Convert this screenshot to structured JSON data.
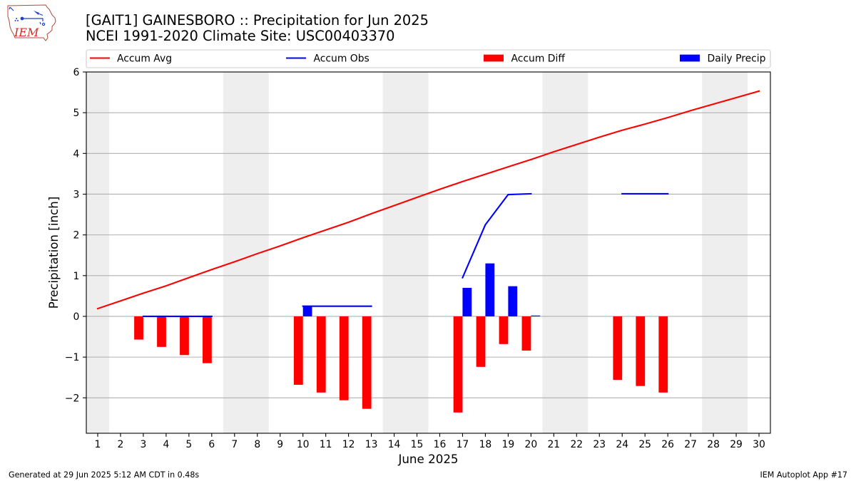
{
  "logo": {
    "text": "IEM"
  },
  "chart_data": {
    "type": "bar",
    "title": "[GAIT1] GAINESBORO :: Precipitation for Jun 2025",
    "subtitle": "NCEI 1991-2020 Climate Site: USC00403370",
    "xlabel": "June 2025",
    "ylabel": "Precipitation [inch]",
    "x": [
      1,
      2,
      3,
      4,
      5,
      6,
      7,
      8,
      9,
      10,
      11,
      12,
      13,
      14,
      15,
      16,
      17,
      18,
      19,
      20,
      21,
      22,
      23,
      24,
      25,
      26,
      27,
      28,
      29,
      30
    ],
    "xtick_labels": [
      "1",
      "2",
      "3",
      "4",
      "5",
      "6",
      "7",
      "8",
      "9",
      "10",
      "11",
      "12",
      "13",
      "14",
      "15",
      "16",
      "17",
      "18",
      "19",
      "20",
      "21",
      "22",
      "23",
      "24",
      "25",
      "26",
      "27",
      "28",
      "29",
      "30"
    ],
    "xlim": [
      0.5,
      30.5
    ],
    "ylim": [
      -2.87,
      6
    ],
    "yticks": [
      -2,
      -1,
      0,
      1,
      2,
      3,
      4,
      5,
      6
    ],
    "ytick_labels": [
      "−2",
      "−1",
      "0",
      "1",
      "2",
      "3",
      "4",
      "5",
      "6"
    ],
    "grid": "horizontal",
    "legend": "above plot",
    "weekend_days": [
      1,
      7,
      8,
      14,
      15,
      21,
      22,
      28,
      29
    ],
    "weekend_shade_color": "#eeeeee",
    "series": [
      {
        "name": "Accum Avg",
        "type": "line",
        "color": "#ff0000",
        "values": [
          0.19,
          0.38,
          0.57,
          0.75,
          0.95,
          1.15,
          1.34,
          1.54,
          1.73,
          1.93,
          2.12,
          2.31,
          2.52,
          2.72,
          2.92,
          3.12,
          3.31,
          3.49,
          3.67,
          3.85,
          4.04,
          4.22,
          4.4,
          4.57,
          4.72,
          4.88,
          5.05,
          5.21,
          5.37,
          5.53
        ]
      },
      {
        "name": "Accum Obs",
        "type": "line",
        "color": "#0000ff",
        "values": [
          null,
          null,
          0,
          0,
          0,
          0,
          null,
          null,
          null,
          0.25,
          0.25,
          0.25,
          0.25,
          null,
          null,
          null,
          0.95,
          2.25,
          2.99,
          3.01,
          null,
          null,
          null,
          3.01,
          3.01,
          3.01,
          null,
          null,
          null,
          null
        ]
      },
      {
        "name": "Accum Diff",
        "type": "bar",
        "color": "#ff0000",
        "values": [
          null,
          null,
          -0.57,
          -0.75,
          -0.95,
          -1.15,
          null,
          null,
          null,
          -1.68,
          -1.87,
          -2.06,
          -2.27,
          null,
          null,
          null,
          -2.36,
          -1.24,
          -0.68,
          -0.84,
          null,
          null,
          null,
          -1.56,
          -1.71,
          -1.87,
          null,
          null,
          null,
          null
        ]
      },
      {
        "name": "Daily Precip",
        "type": "bar",
        "color": "#0000ff",
        "values": [
          null,
          null,
          0,
          0,
          0,
          0,
          null,
          null,
          null,
          0.25,
          0,
          0,
          0,
          null,
          null,
          null,
          0.7,
          1.3,
          0.74,
          0.02,
          null,
          null,
          null,
          0,
          0,
          0,
          null,
          null,
          null,
          null
        ]
      }
    ]
  },
  "footer": {
    "generated": "Generated at 29 Jun 2025 5:12 AM CDT in 0.48s",
    "app": "IEM Autoplot App #17"
  }
}
